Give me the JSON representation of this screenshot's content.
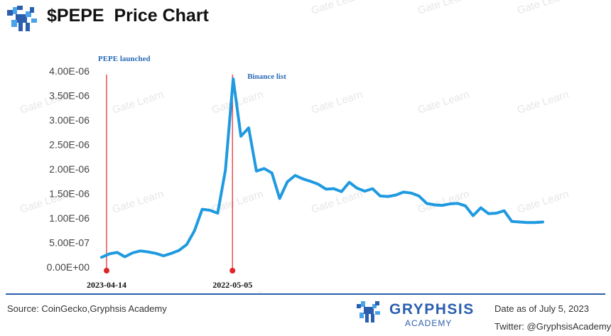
{
  "header": {
    "title": "$PEPE  Price Chart",
    "logo_icon": "gryphon-logo-icon"
  },
  "chart_data": {
    "type": "line",
    "title": "$PEPE  Price Chart",
    "xlabel": "",
    "ylabel": "",
    "ylim": [
      0,
      4e-06
    ],
    "y_ticks": [
      "0.00E+00",
      "5.00E-07",
      "1.00E-06",
      "1.50E-06",
      "2.00E-06",
      "2.50E-06",
      "3.00E-06",
      "3.50E-06",
      "4.00E-06"
    ],
    "y_tick_values": [
      0,
      5e-07,
      1e-06,
      1.5e-06,
      2e-06,
      2.5e-06,
      3e-06,
      3.5e-06,
      4e-06
    ],
    "grid": false,
    "line_color": "#1f9ae0",
    "series": [
      {
        "values": [
          2e-07,
          2.7e-07,
          3e-07,
          2.1e-07,
          2.9e-07,
          3.3e-07,
          3.1e-07,
          2.8e-07,
          2.3e-07,
          2.8e-07,
          3.4e-07,
          4.6e-07,
          7.4e-07,
          1.18e-06,
          1.16e-06,
          1.1e-06,
          1.98e-06,
          3.84e-06,
          2.67e-06,
          2.84e-06,
          1.96e-06,
          2.01e-06,
          1.92e-06,
          1.4e-06,
          1.74e-06,
          1.87e-06,
          1.8e-06,
          1.75e-06,
          1.69e-06,
          1.59e-06,
          1.6e-06,
          1.54e-06,
          1.73e-06,
          1.61e-06,
          1.55e-06,
          1.6e-06,
          1.45e-06,
          1.44e-06,
          1.47e-06,
          1.53e-06,
          1.51e-06,
          1.45e-06,
          1.3e-06,
          1.27e-06,
          1.26e-06,
          1.29e-06,
          1.3e-06,
          1.25e-06,
          1.05e-06,
          1.21e-06,
          1.09e-06,
          1.1e-06,
          1.15e-06,
          9.3e-07,
          9.2e-07,
          9.1e-07,
          9.1e-07,
          9.2e-07
        ]
      }
    ],
    "annotations": [
      {
        "label": "PEPE launched",
        "date_label": "2023-04-14",
        "index": 0,
        "color": "#e0242a"
      },
      {
        "label": "Binance list",
        "date_label": "2022-05-05",
        "index": 17,
        "color": "#e0242a"
      }
    ],
    "annotation_label_color": "#2b6cb8"
  },
  "watermark": {
    "text": "Gate Learn"
  },
  "footer": {
    "source": "Source: CoinGecko,Gryphsis Academy",
    "brand_name": "GRYPHSIS",
    "brand_sub": "ACADEMY",
    "date_note": "Date as of July 5, 2023",
    "twitter": "Twitter: @GryphsisAcademy",
    "rule_color": "#2b5fae"
  }
}
